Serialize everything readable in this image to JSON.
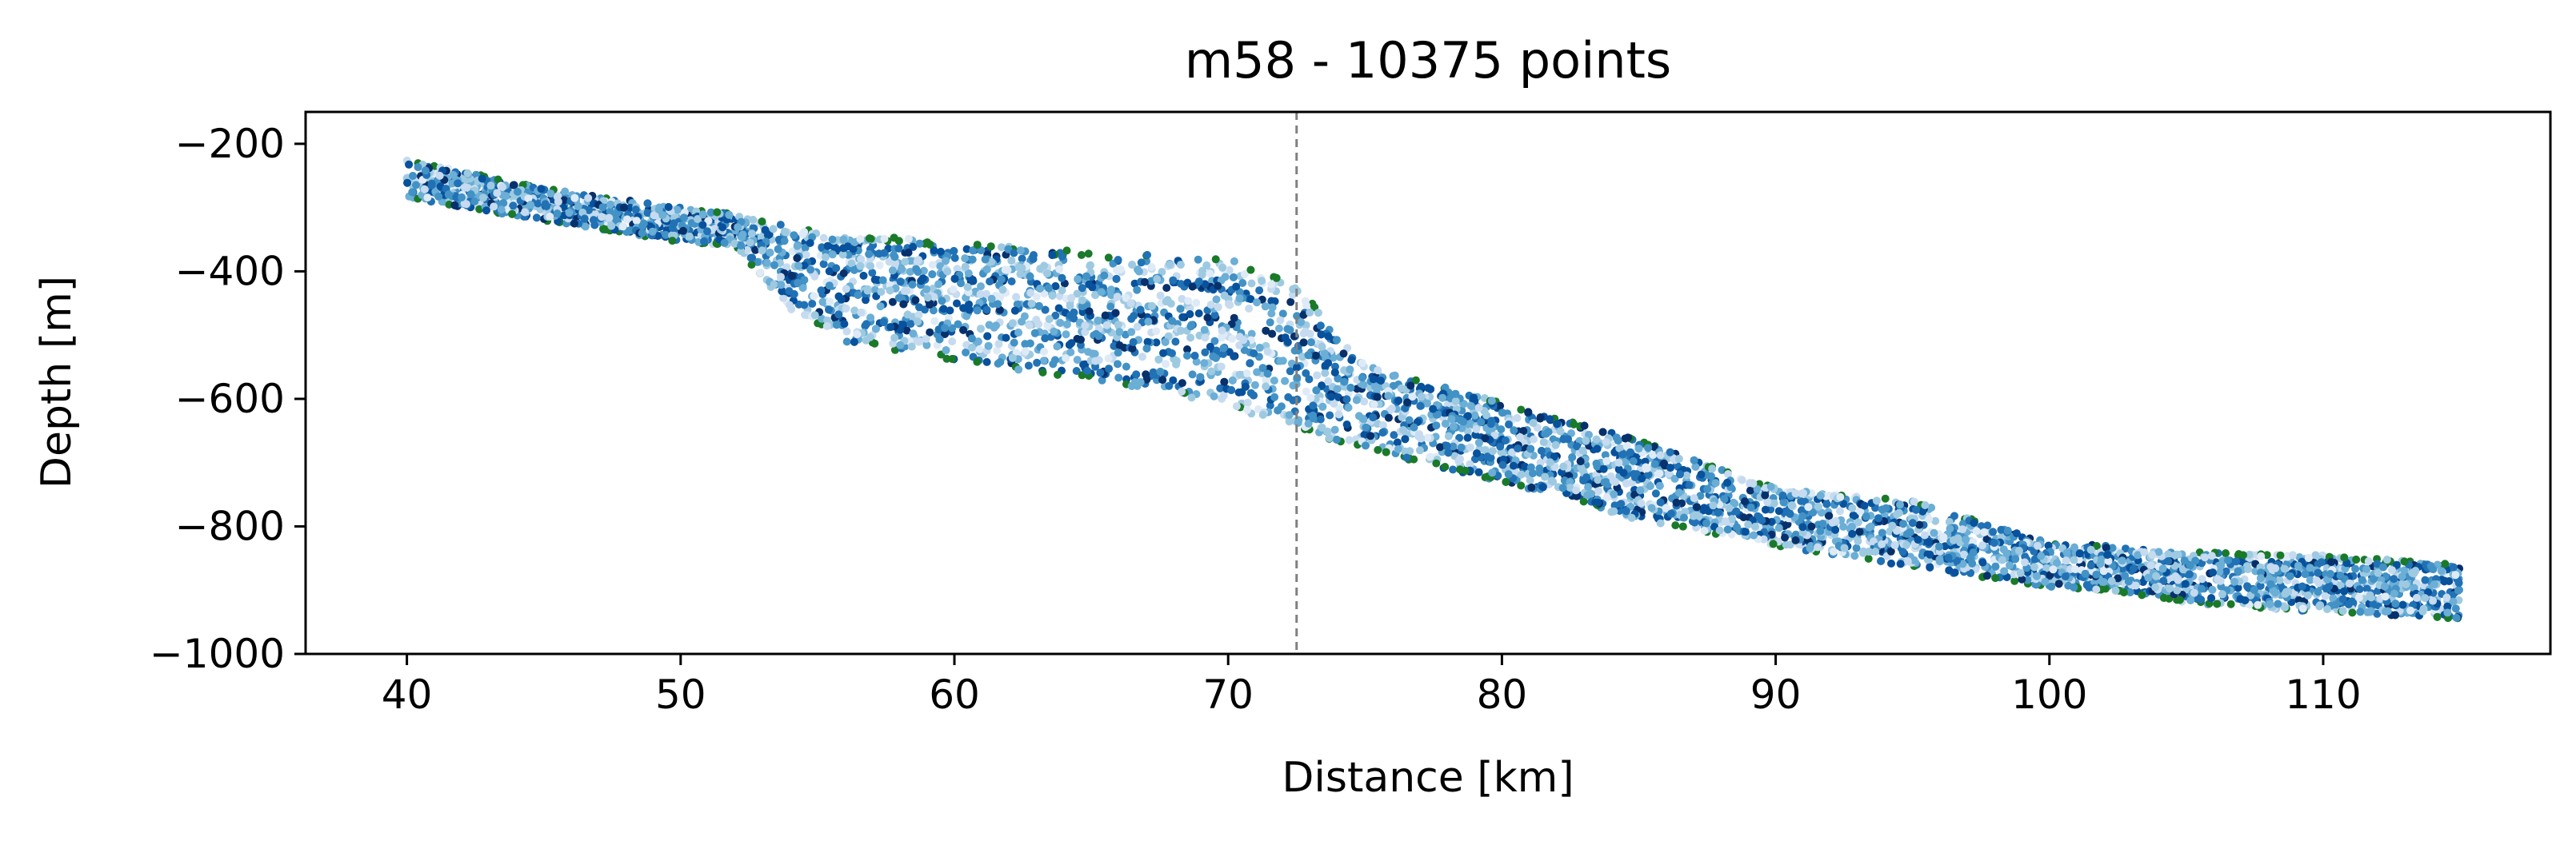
{
  "chart_data": {
    "type": "scatter",
    "title": "m58 - 10375 points",
    "xlabel": "Distance [km]",
    "ylabel": "Depth [m]",
    "xlim": [
      36.3,
      118.3
    ],
    "ylim": [
      -1000,
      -150
    ],
    "xticks": [
      40,
      50,
      60,
      70,
      80,
      90,
      100,
      110
    ],
    "yticks": [
      -200,
      -400,
      -600,
      -800,
      -1000
    ],
    "xtick_labels": [
      "40",
      "50",
      "60",
      "70",
      "80",
      "90",
      "100",
      "110"
    ],
    "ytick_labels": [
      "−200",
      "−400",
      "−600",
      "−800",
      "−1000"
    ],
    "vline": {
      "x": 72.5,
      "style": "dashed",
      "color": "#808080"
    },
    "grid": false,
    "legend": "none",
    "colormap": [
      "#08306b",
      "#08519c",
      "#2171b5",
      "#4292c6",
      "#6baed6",
      "#9ecae1",
      "#c6dbef",
      "#deebf7"
    ],
    "edge_color": "#1a7a2a",
    "point_count": 10375,
    "band": {
      "x": [
        40,
        45,
        50,
        52,
        54,
        56,
        60,
        65,
        70,
        72.5,
        75,
        80,
        85,
        90,
        95,
        100,
        102,
        105,
        110,
        115
      ],
      "top": [
        -225,
        -270,
        -300,
        -310,
        -330,
        -340,
        -355,
        -370,
        -380,
        -420,
        -545,
        -605,
        -665,
        -740,
        -760,
        -825,
        -830,
        -840,
        -845,
        -860
      ],
      "bottom": [
        -285,
        -320,
        -355,
        -360,
        -460,
        -510,
        -540,
        -570,
        -610,
        -650,
        -680,
        -730,
        -790,
        -830,
        -865,
        -895,
        -900,
        -920,
        -935,
        -945
      ]
    }
  }
}
